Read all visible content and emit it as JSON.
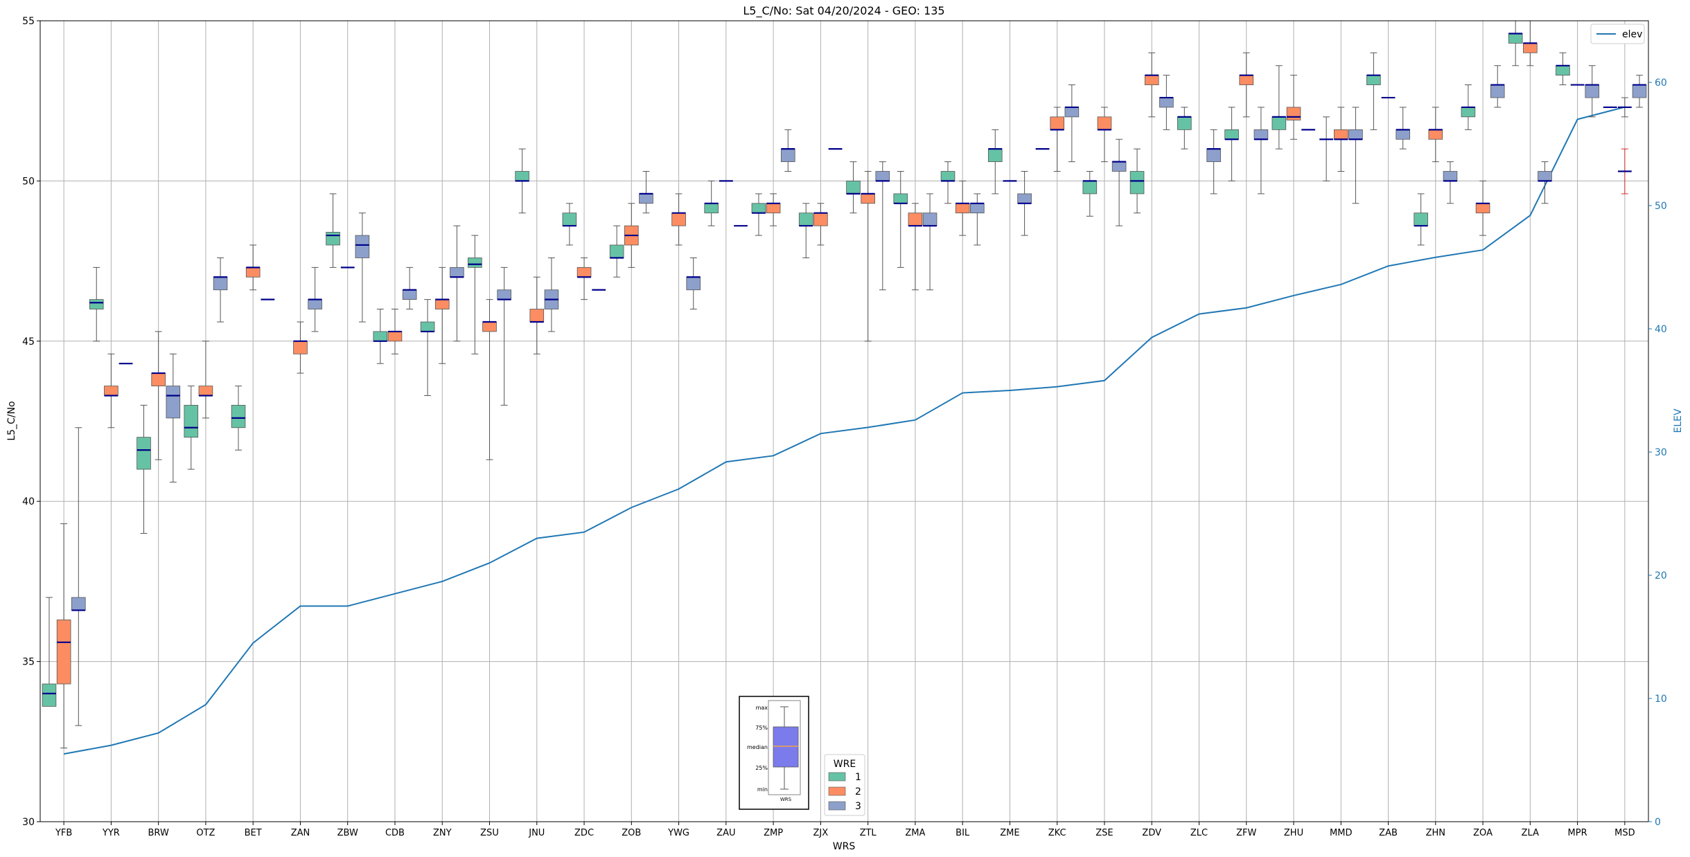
{
  "chart_data": {
    "type": "box",
    "title": "L5_C/No: Sat 04/20/2024 - GEO: 135",
    "xlabel": "WRS",
    "ylabel": "L5_C/No",
    "y2label": "ELEV",
    "ylim": [
      30,
      55
    ],
    "y2lim": [
      0,
      65
    ],
    "yticks": [
      30,
      35,
      40,
      45,
      50,
      55
    ],
    "y2ticks": [
      0,
      10,
      20,
      30,
      40,
      50,
      60
    ],
    "grid": true,
    "colors": {
      "wre1": "#66c2a5",
      "wre2": "#fc8d62",
      "wre3": "#8da0cb",
      "median": "#00008b",
      "whisker": "#555555",
      "elev": "#1f77b4",
      "outlier": "#d62728",
      "guide_box": "#7b7bec",
      "guide_median": "#f4a24a"
    },
    "categories": [
      "YFB",
      "YYR",
      "BRW",
      "OTZ",
      "BET",
      "ZAN",
      "ZBW",
      "CDB",
      "ZNY",
      "ZSU",
      "JNU",
      "ZDC",
      "ZOB",
      "YWG",
      "ZAU",
      "ZMP",
      "ZJX",
      "ZTL",
      "ZMA",
      "BIL",
      "ZME",
      "ZKC",
      "ZSE",
      "ZDV",
      "ZLC",
      "ZFW",
      "ZHU",
      "MMD",
      "ZAB",
      "ZHN",
      "ZOA",
      "ZLA",
      "MPR",
      "MSD"
    ],
    "elev": [
      5.5,
      6.2,
      7.2,
      9.5,
      14.5,
      17.5,
      17.5,
      18.5,
      19.5,
      21,
      23,
      23.5,
      25.5,
      27,
      29.2,
      29.7,
      31.5,
      32,
      32.6,
      34.8,
      35,
      35.3,
      35.8,
      39.3,
      41.2,
      41.7,
      42.7,
      43.6,
      45.1,
      45.8,
      46.4,
      49.2,
      57,
      58
    ],
    "series": [
      {
        "name": "1",
        "boxes": [
          [
            null,
            33.6,
            34.0,
            34.3,
            37.0
          ],
          [
            45.0,
            46.0,
            46.2,
            46.3,
            47.3
          ],
          [
            39.0,
            41.0,
            41.6,
            42.0,
            43.0
          ],
          [
            41.0,
            42.0,
            42.3,
            43.0,
            43.6
          ],
          [
            41.6,
            42.3,
            42.6,
            43.0,
            43.6
          ],
          null,
          [
            47.3,
            48.0,
            48.3,
            48.4,
            49.6
          ],
          [
            44.3,
            45.0,
            45.0,
            45.3,
            46.0
          ],
          [
            43.3,
            45.3,
            45.3,
            45.6,
            46.3
          ],
          [
            44.6,
            47.3,
            47.4,
            47.6,
            48.3
          ],
          [
            49.0,
            50.0,
            50.0,
            50.3,
            51.0
          ],
          [
            48.0,
            48.6,
            48.6,
            49.0,
            49.3
          ],
          [
            47.0,
            47.6,
            47.6,
            48.0,
            48.6
          ],
          null,
          [
            48.6,
            49.0,
            49.3,
            49.3,
            50.0
          ],
          [
            48.3,
            49.0,
            49.0,
            49.3,
            49.6
          ],
          [
            47.6,
            48.6,
            48.6,
            49.0,
            49.3
          ],
          [
            49.0,
            49.6,
            49.6,
            50.0,
            50.6
          ],
          [
            47.3,
            49.3,
            49.3,
            49.6,
            50.3
          ],
          [
            49.3,
            50.0,
            50.0,
            50.3,
            50.6
          ],
          [
            49.6,
            50.6,
            51.0,
            51.0,
            51.6
          ],
          [
            null,
            51.0,
            51.0,
            51.0,
            null
          ],
          [
            48.9,
            49.6,
            50.0,
            50.0,
            50.3
          ],
          [
            49.0,
            49.6,
            50.0,
            50.3,
            51.0
          ],
          [
            51.0,
            51.6,
            52.0,
            52.0,
            52.3
          ],
          [
            50.0,
            51.3,
            51.3,
            51.6,
            52.3
          ],
          [
            51.0,
            51.6,
            52.0,
            52.0,
            53.6
          ],
          [
            50.0,
            51.3,
            51.3,
            51.3,
            52.0
          ],
          [
            51.6,
            53.0,
            53.3,
            53.3,
            54.0
          ],
          [
            48.0,
            48.6,
            48.6,
            49.0,
            49.6
          ],
          [
            51.6,
            52.0,
            52.3,
            52.3,
            53.0
          ],
          [
            53.6,
            54.3,
            54.6,
            54.6,
            55.0
          ],
          [
            53.0,
            53.3,
            53.6,
            53.6,
            54.0
          ],
          [
            null,
            52.3,
            52.3,
            52.3,
            null
          ]
        ]
      },
      {
        "name": "2",
        "boxes": [
          [
            32.3,
            34.3,
            35.6,
            36.3,
            39.3
          ],
          [
            42.3,
            43.3,
            43.3,
            43.6,
            44.6
          ],
          [
            41.3,
            43.6,
            44.0,
            44.0,
            45.3
          ],
          [
            42.6,
            43.3,
            43.3,
            43.6,
            45.0
          ],
          [
            46.6,
            47.0,
            47.3,
            47.3,
            48.0
          ],
          [
            44.0,
            44.6,
            45.0,
            45.0,
            45.6
          ],
          [
            null,
            47.3,
            47.3,
            47.3,
            null
          ],
          [
            44.6,
            45.0,
            45.3,
            45.3,
            46.0
          ],
          [
            44.3,
            46.0,
            46.3,
            46.3,
            47.3
          ],
          [
            41.3,
            45.3,
            45.6,
            45.6,
            46.3
          ],
          [
            44.6,
            45.6,
            45.6,
            46.0,
            47.0
          ],
          [
            46.3,
            47.0,
            47.0,
            47.3,
            47.6
          ],
          [
            47.3,
            48.0,
            48.3,
            48.6,
            49.3
          ],
          [
            48.0,
            48.6,
            49.0,
            49.0,
            49.6
          ],
          [
            null,
            50.0,
            50.0,
            50.0,
            null
          ],
          [
            48.6,
            49.0,
            49.3,
            49.3,
            49.6
          ],
          [
            48.0,
            48.6,
            49.0,
            49.0,
            49.3
          ],
          [
            45.0,
            49.3,
            49.6,
            49.6,
            50.3
          ],
          [
            46.6,
            48.6,
            48.6,
            49.0,
            49.3
          ],
          [
            48.3,
            49.0,
            49.3,
            49.3,
            50.0
          ],
          [
            null,
            50.0,
            50.0,
            50.0,
            null
          ],
          [
            50.3,
            51.6,
            51.6,
            52.0,
            52.3
          ],
          [
            50.6,
            51.6,
            51.6,
            52.0,
            52.3
          ],
          [
            52.0,
            53.0,
            53.3,
            53.3,
            54.0
          ],
          null,
          [
            52.0,
            53.0,
            53.3,
            53.3,
            54.0
          ],
          [
            51.3,
            51.9,
            52.0,
            52.3,
            53.3
          ],
          [
            50.3,
            51.3,
            51.3,
            51.6,
            52.3
          ],
          [
            null,
            52.6,
            52.6,
            52.6,
            null
          ],
          [
            50.6,
            51.3,
            51.6,
            51.6,
            52.3
          ],
          [
            48.3,
            49.0,
            49.3,
            49.3,
            50.0
          ],
          [
            53.6,
            54.0,
            54.3,
            54.3,
            55.0
          ],
          [
            null,
            53.0,
            53.0,
            53.0,
            null
          ],
          [
            52.0,
            52.3,
            52.3,
            52.3,
            52.6
          ]
        ]
      },
      {
        "name": "3",
        "boxes": [
          [
            33.0,
            36.6,
            36.6,
            37.0,
            42.3
          ],
          [
            null,
            44.3,
            44.3,
            44.3,
            null
          ],
          [
            40.6,
            42.6,
            43.3,
            43.6,
            44.6
          ],
          [
            45.6,
            46.6,
            47.0,
            47.0,
            47.6
          ],
          [
            null,
            46.3,
            46.3,
            46.3,
            null
          ],
          [
            45.3,
            46.0,
            46.3,
            46.3,
            47.3
          ],
          [
            45.6,
            47.6,
            48.0,
            48.3,
            49.0
          ],
          [
            46.0,
            46.3,
            46.6,
            46.6,
            47.3
          ],
          [
            45.0,
            47.0,
            47.0,
            47.3,
            48.6
          ],
          [
            43.0,
            46.3,
            46.3,
            46.6,
            47.3
          ],
          [
            45.3,
            46.0,
            46.3,
            46.6,
            47.6
          ],
          [
            null,
            46.6,
            46.6,
            46.6,
            null
          ],
          [
            49.0,
            49.3,
            49.6,
            49.6,
            50.3
          ],
          [
            46.0,
            46.6,
            47.0,
            47.0,
            47.6
          ],
          [
            null,
            48.6,
            48.6,
            48.6,
            null
          ],
          [
            50.3,
            50.6,
            51.0,
            51.0,
            51.6
          ],
          [
            null,
            51.0,
            51.0,
            51.0,
            null
          ],
          [
            46.6,
            50.0,
            50.0,
            50.3,
            50.6
          ],
          [
            46.6,
            48.6,
            48.6,
            49.0,
            49.6
          ],
          [
            48.0,
            49.0,
            49.3,
            49.3,
            49.6
          ],
          [
            48.3,
            49.3,
            49.3,
            49.6,
            50.3
          ],
          [
            50.6,
            52.0,
            52.3,
            52.3,
            53.0
          ],
          [
            48.6,
            50.3,
            50.6,
            50.6,
            51.3
          ],
          [
            51.6,
            52.3,
            52.6,
            52.6,
            53.3
          ],
          [
            49.6,
            50.6,
            51.0,
            51.0,
            51.6
          ],
          [
            49.6,
            51.3,
            51.3,
            51.6,
            52.3
          ],
          [
            null,
            51.6,
            51.6,
            51.6,
            null
          ],
          [
            49.3,
            51.3,
            51.3,
            51.6,
            52.3
          ],
          [
            51.0,
            51.3,
            51.6,
            51.6,
            52.3
          ],
          [
            49.3,
            50.0,
            50.0,
            50.3,
            50.6
          ],
          [
            52.3,
            52.6,
            53.0,
            53.0,
            53.6
          ],
          [
            49.3,
            50.0,
            50.0,
            50.3,
            50.6
          ],
          [
            52.0,
            52.6,
            53.0,
            53.0,
            53.6
          ],
          [
            52.3,
            52.6,
            53.0,
            53.0,
            53.3
          ]
        ]
      }
    ],
    "outliers": [
      {
        "category": "MSD",
        "series": "1",
        "low": 49.6,
        "mid": 50.3,
        "high": 51.0
      }
    ],
    "legend_elev": {
      "label": "elev",
      "position": "top-right"
    },
    "legend_wre": {
      "title": "WRE",
      "entries": [
        "1",
        "2",
        "3"
      ],
      "position": "bottom-center"
    },
    "guide": {
      "labels": [
        "max",
        "75%",
        "median",
        "25%",
        "min"
      ],
      "xlabel": "WRS"
    }
  }
}
